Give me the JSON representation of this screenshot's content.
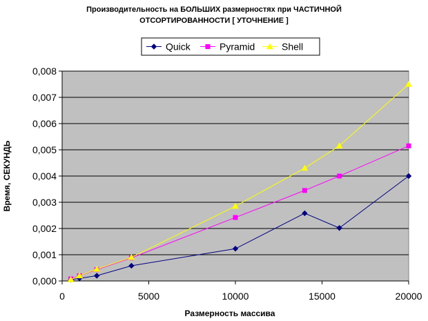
{
  "chart_data": {
    "type": "line",
    "title_line1": "Производительность на БОЛЬШИХ размерностях при ЧАСТИЧНОЙ",
    "title_line2": "ОТСОРТИРОВАННОСТИ [ УТОЧНЕНИЕ ]",
    "xlabel": "Размерность массива",
    "ylabel": "Время, СЕКУНДЬ",
    "xlim": [
      0,
      20000
    ],
    "ylim": [
      0,
      0.008
    ],
    "x_ticks": [
      "0",
      "5000",
      "10000",
      "15000",
      "20000"
    ],
    "y_ticks": [
      "0,000",
      "0,001",
      "0,002",
      "0,003",
      "0,004",
      "0,005",
      "0,006",
      "0,007",
      "0,008"
    ],
    "grid": "horizontal",
    "legend_position": "top",
    "plot_background": "#c0c0c0",
    "series": [
      {
        "name": "Quick",
        "color": "#000080",
        "marker": "diamond",
        "points": [
          [
            500,
            5e-05
          ],
          [
            1000,
            0.0001
          ],
          [
            2000,
            0.0002
          ],
          [
            4000,
            0.00058
          ],
          [
            10000,
            0.00123
          ],
          [
            14000,
            0.00258
          ],
          [
            16000,
            0.00202
          ],
          [
            20000,
            0.004
          ]
        ]
      },
      {
        "name": "Pyramid",
        "color": "#ff00ff",
        "marker": "square",
        "points": [
          [
            500,
            8e-05
          ],
          [
            1000,
            0.0002
          ],
          [
            2000,
            0.00043
          ],
          [
            4000,
            0.00088
          ],
          [
            10000,
            0.00242
          ],
          [
            14000,
            0.00345
          ],
          [
            16000,
            0.004
          ],
          [
            20000,
            0.00515
          ]
        ]
      },
      {
        "name": "Shell",
        "color": "#ffff00",
        "marker": "triangle",
        "points": [
          [
            500,
            5e-05
          ],
          [
            1000,
            0.0002
          ],
          [
            2000,
            0.00045
          ],
          [
            4000,
            0.0009
          ],
          [
            10000,
            0.00285
          ],
          [
            14000,
            0.0043
          ],
          [
            16000,
            0.00515
          ],
          [
            20000,
            0.0075
          ]
        ]
      }
    ]
  }
}
